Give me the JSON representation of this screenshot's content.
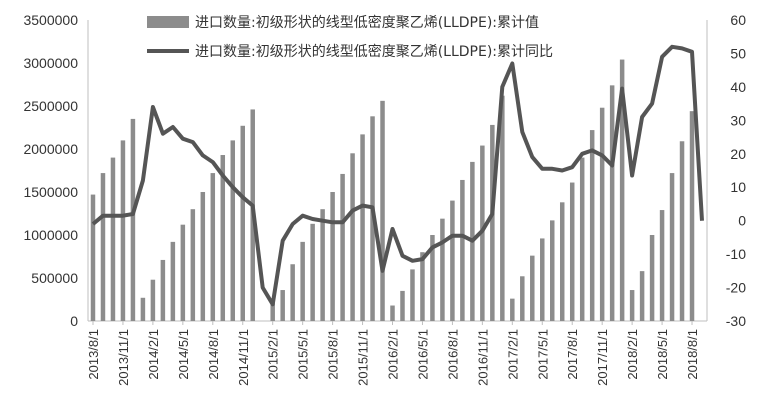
{
  "chart_data": {
    "type": "bar",
    "colors": {
      "bars": "#8c8c8c",
      "line": "#555555",
      "axis": "#bfbfbf"
    },
    "legend_position": "top",
    "y_left": {
      "min": 0,
      "max": 3500000,
      "ticks": [
        "0",
        "500000",
        "1000000",
        "1500000",
        "2000000",
        "2500000",
        "3000000",
        "3500000"
      ]
    },
    "y_right": {
      "min": -30,
      "max": 60,
      "ticks": [
        "-30",
        "-20",
        "-10",
        "0",
        "10",
        "20",
        "30",
        "40",
        "50",
        "60"
      ]
    },
    "x_tick_labels": [
      "2013/8/1",
      "2013/11/1",
      "2014/2/1",
      "2014/5/1",
      "2014/8/1",
      "2014/11/1",
      "2015/2/1",
      "2015/5/1",
      "2015/8/1",
      "2015/11/1",
      "2016/2/1",
      "2016/5/1",
      "2016/8/1",
      "2016/11/1",
      "2017/2/1",
      "2017/5/1",
      "2017/8/1",
      "2017/11/1",
      "2018/2/1",
      "2018/5/1",
      "2018/8/1"
    ],
    "categories": [
      "2013/8",
      "2013/9",
      "2013/10",
      "2013/11",
      "2013/12",
      "2014/1",
      "2014/2",
      "2014/3",
      "2014/4",
      "2014/5",
      "2014/6",
      "2014/7",
      "2014/8",
      "2014/9",
      "2014/10",
      "2014/11",
      "2014/12",
      "2015/1",
      "2015/2",
      "2015/3",
      "2015/4",
      "2015/5",
      "2015/6",
      "2015/7",
      "2015/8",
      "2015/9",
      "2015/10",
      "2015/11",
      "2015/12",
      "2016/1",
      "2016/2",
      "2016/3",
      "2016/4",
      "2016/5",
      "2016/6",
      "2016/7",
      "2016/8",
      "2016/9",
      "2016/10",
      "2016/11",
      "2016/12",
      "2017/1",
      "2017/2",
      "2017/3",
      "2017/4",
      "2017/5",
      "2017/6",
      "2017/7",
      "2017/8",
      "2017/9",
      "2017/10",
      "2017/11",
      "2017/12",
      "2018/1",
      "2018/2",
      "2018/3",
      "2018/4",
      "2018/5",
      "2018/6",
      "2018/7",
      "2018/8",
      "2018/9"
    ],
    "series": [
      {
        "name": "进口数量:初级形状的线型低密度聚乙烯(LLDPE):累计值",
        "axis": "left",
        "kind": "bar",
        "values": [
          1470000,
          1720000,
          1900000,
          2100000,
          2350000,
          270000,
          480000,
          710000,
          920000,
          1120000,
          1300000,
          1500000,
          1720000,
          1930000,
          2100000,
          2270000,
          2460000,
          0,
          220000,
          360000,
          660000,
          920000,
          1130000,
          1300000,
          1500000,
          1710000,
          1950000,
          2170000,
          2380000,
          2560000,
          180000,
          350000,
          600000,
          800000,
          1000000,
          1190000,
          1400000,
          1640000,
          1850000,
          2040000,
          2280000,
          2620000,
          260000,
          520000,
          760000,
          960000,
          1170000,
          1380000,
          1610000,
          1900000,
          2220000,
          2480000,
          2740000,
          3040000,
          360000,
          580000,
          1000000,
          1290000,
          1720000,
          2090000,
          2440000,
          0
        ],
        "line_values": []
      },
      {
        "name": "进口数量:初级形状的线型低密度聚乙烯(LLDPE):累计同比",
        "axis": "right",
        "kind": "line",
        "values": [
          -1,
          1.5,
          1.5,
          1.5,
          2,
          12,
          34,
          26,
          28,
          24.5,
          23.5,
          19.5,
          17.5,
          13.5,
          10,
          7,
          4.5,
          -20,
          -25,
          -6,
          -1,
          1.5,
          0.5,
          0,
          -0.5,
          -0.5,
          3,
          4.5,
          4,
          -15,
          -2.5,
          -10.5,
          -12,
          -11.5,
          -8,
          -6.5,
          -4.5,
          -4.5,
          -6,
          -3,
          2,
          40,
          47,
          26.5,
          19,
          15.5,
          15.5,
          15,
          16,
          20,
          21,
          19.5,
          16.5,
          39.5,
          13.5,
          31,
          35,
          49,
          52,
          51.5,
          50.5,
          0
        ]
      }
    ]
  }
}
